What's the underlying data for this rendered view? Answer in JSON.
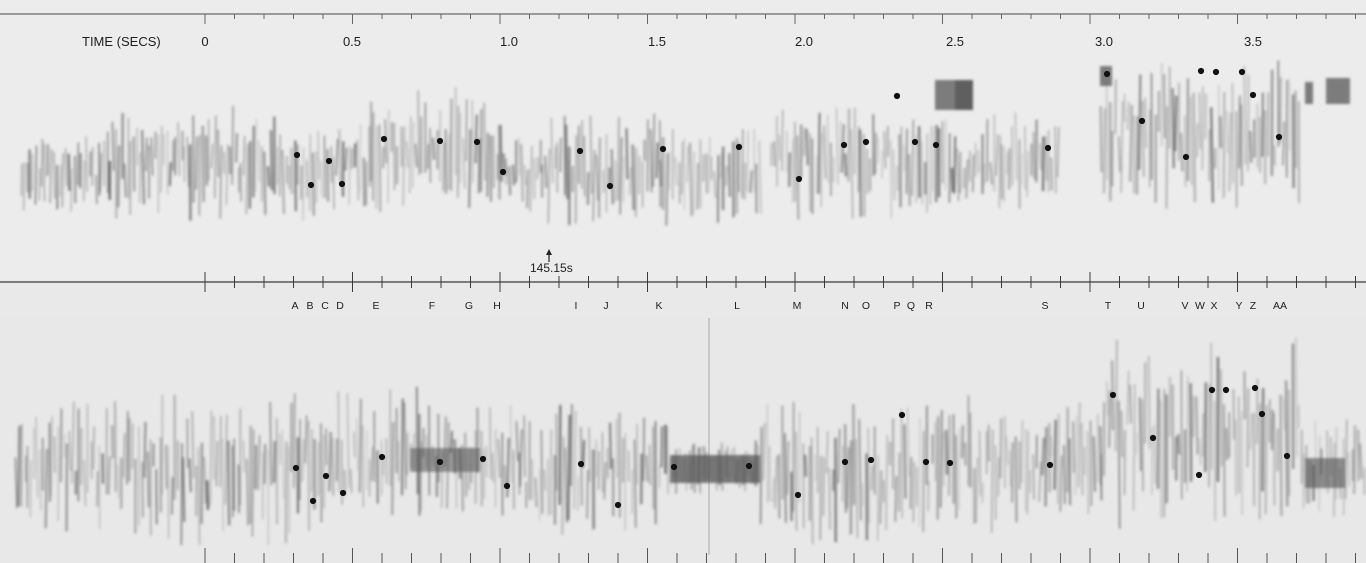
{
  "axis": {
    "label": "TIME (SECS)",
    "ticks": [
      "0",
      "0.5",
      "1.0",
      "1.5",
      "2.0",
      "2.5",
      "3.0",
      "3.5"
    ]
  },
  "marker": {
    "label": "145.15s"
  },
  "event_labels": [
    "A",
    "B",
    "C",
    "D",
    "E",
    "F",
    "G",
    "H",
    "I",
    "J",
    "K",
    "L",
    "M",
    "N",
    "O",
    "P",
    "Q",
    "R",
    "S",
    "T",
    "U",
    "V",
    "W",
    "X",
    "Y",
    "Z",
    "AA"
  ]
}
